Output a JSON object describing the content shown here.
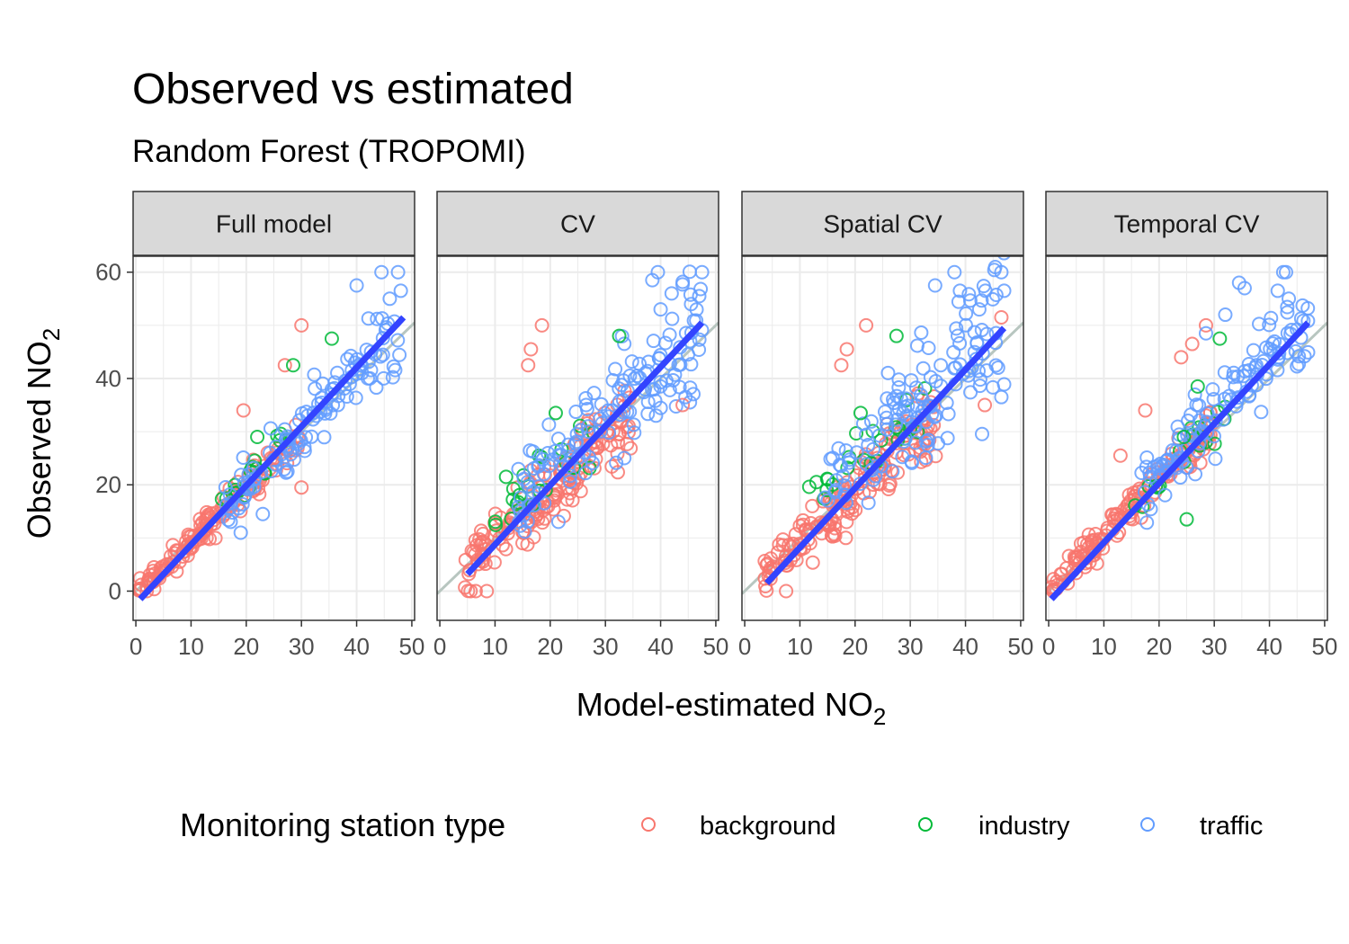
{
  "chart_data": {
    "type": "scatter",
    "title": "Observed vs estimated",
    "subtitle": "Random Forest (TROPOMI)",
    "xlabel_main": "Model-estimated NO",
    "xlabel_sub": "2",
    "ylabel_main": "Observed NO",
    "ylabel_sub": "2",
    "xlim": [
      -0.5,
      50.5
    ],
    "ylim": [
      -5.5,
      63
    ],
    "x_ticks": [
      0,
      10,
      20,
      30,
      40,
      50
    ],
    "x_tick_labels": [
      "0",
      "10",
      "20",
      "30",
      "40",
      "50"
    ],
    "y_ticks": [
      0,
      20,
      40,
      60
    ],
    "y_tick_labels": [
      "0",
      "20",
      "40",
      "60"
    ],
    "grid": true,
    "reference_line": {
      "slope": 1,
      "intercept": 0,
      "color": "#b8c6c0"
    },
    "legend": {
      "title": "Monitoring station type",
      "position": "bottom",
      "entries": [
        {
          "label": "background",
          "color": "#f8766d"
        },
        {
          "label": "industry",
          "color": "#00ba38"
        },
        {
          "label": "traffic",
          "color": "#619cff"
        }
      ]
    },
    "panels": [
      {
        "strip": "Full model",
        "fit_line": {
          "x": [
            0.8,
            48.5
          ],
          "y": [
            -1.5,
            51.5
          ],
          "color": "#3344ff"
        },
        "clusters": [
          {
            "series": "background",
            "x": [
              0.5,
              30
            ],
            "slope": 1.0,
            "intercept": -0.5,
            "spread": 2.2,
            "count": 150,
            "seed": 11
          },
          {
            "series": "industry",
            "x": [
              15,
              35
            ],
            "slope": 1.0,
            "intercept": 1.5,
            "spread": 2.5,
            "count": 18,
            "seed": 12
          },
          {
            "series": "traffic",
            "x": [
              16,
              48
            ],
            "slope": 1.02,
            "intercept": 0,
            "spread": 3.2,
            "count": 120,
            "seed": 13
          }
        ],
        "outliers": [
          {
            "series": "background",
            "points": [
              [
                30,
                19.5
              ],
              [
                24.5,
                25
              ],
              [
                19.5,
                34
              ],
              [
                27,
                42.5
              ],
              [
                30,
                50
              ]
            ]
          },
          {
            "series": "industry",
            "points": [
              [
                35.5,
                47.5
              ],
              [
                28.5,
                42.5
              ],
              [
                22,
                29
              ]
            ]
          },
          {
            "series": "traffic",
            "points": [
              [
                44.5,
                60
              ],
              [
                47.5,
                60
              ],
              [
                40,
                57.5
              ],
              [
                48,
                56.5
              ],
              [
                46,
                55
              ],
              [
                23,
                14.5
              ],
              [
                19,
                11
              ]
            ]
          }
        ]
      },
      {
        "strip": "CV",
        "fit_line": {
          "x": [
            5,
            47.5
          ],
          "y": [
            3.2,
            50.5
          ],
          "color": "#3344ff"
        },
        "clusters": [
          {
            "series": "background",
            "x": [
              4.5,
              35
            ],
            "slope": 0.95,
            "intercept": 0,
            "spread": 4.5,
            "count": 170,
            "seed": 21
          },
          {
            "series": "industry",
            "x": [
              10,
              33
            ],
            "slope": 1.0,
            "intercept": 4,
            "spread": 4.0,
            "count": 22,
            "seed": 22
          },
          {
            "series": "traffic",
            "x": [
              14,
              47.5
            ],
            "slope": 1.0,
            "intercept": 3,
            "spread": 6.0,
            "count": 140,
            "seed": 23
          }
        ],
        "outliers": [
          {
            "series": "background",
            "points": [
              [
                18.5,
                50
              ],
              [
                16.5,
                45.5
              ],
              [
                16,
                42.5
              ],
              [
                44,
                35
              ],
              [
                6.5,
                0
              ],
              [
                8.5,
                0
              ]
            ]
          },
          {
            "series": "industry",
            "points": [
              [
                32.5,
                48
              ],
              [
                21,
                33.5
              ],
              [
                12,
                21.5
              ]
            ]
          },
          {
            "series": "traffic",
            "points": [
              [
                39.5,
                60
              ],
              [
                47.5,
                60
              ],
              [
                38.5,
                58.5
              ],
              [
                42,
                56
              ],
              [
                47,
                55.5
              ],
              [
                44.5,
                36.5
              ],
              [
                40,
                53
              ]
            ]
          }
        ]
      },
      {
        "strip": "Spatial CV",
        "fit_line": {
          "x": [
            4,
            47
          ],
          "y": [
            1.5,
            49.5
          ],
          "color": "#3344ff"
        },
        "clusters": [
          {
            "series": "background",
            "x": [
              3.5,
              35
            ],
            "slope": 0.95,
            "intercept": 0,
            "spread": 4.5,
            "count": 170,
            "seed": 31
          },
          {
            "series": "industry",
            "x": [
              10,
              33
            ],
            "slope": 1.0,
            "intercept": 4,
            "spread": 4.0,
            "count": 22,
            "seed": 32
          },
          {
            "series": "traffic",
            "x": [
              14,
              47
            ],
            "slope": 1.0,
            "intercept": 3,
            "spread": 6.0,
            "count": 140,
            "seed": 33
          }
        ],
        "outliers": [
          {
            "series": "background",
            "points": [
              [
                22,
                50
              ],
              [
                18.5,
                45.5
              ],
              [
                17.5,
                42.5
              ],
              [
                43.5,
                35
              ],
              [
                46.5,
                51.5
              ],
              [
                7.5,
                0
              ]
            ]
          },
          {
            "series": "industry",
            "points": [
              [
                27.5,
                48
              ],
              [
                21,
                33.5
              ],
              [
                13,
                20.5
              ]
            ]
          },
          {
            "series": "traffic",
            "points": [
              [
                38,
                60
              ],
              [
                46.5,
                60
              ],
              [
                34.5,
                57.5
              ],
              [
                39,
                56.5
              ],
              [
                47,
                56.5
              ],
              [
                46.5,
                36.5
              ],
              [
                42.5,
                53
              ]
            ]
          }
        ]
      },
      {
        "strip": "Temporal CV",
        "fit_line": {
          "x": [
            0.5,
            47
          ],
          "y": [
            -1.5,
            50.5
          ],
          "color": "#3344ff"
        },
        "clusters": [
          {
            "series": "background",
            "x": [
              0.5,
              30
            ],
            "slope": 1.05,
            "intercept": 0,
            "spread": 2.6,
            "count": 150,
            "seed": 41
          },
          {
            "series": "industry",
            "x": [
              15,
              33
            ],
            "slope": 1.05,
            "intercept": 1,
            "spread": 3.5,
            "count": 18,
            "seed": 42
          },
          {
            "series": "traffic",
            "x": [
              16,
              47
            ],
            "slope": 1.05,
            "intercept": 1,
            "spread": 4.0,
            "count": 120,
            "seed": 43
          }
        ],
        "outliers": [
          {
            "series": "background",
            "points": [
              [
                28.5,
                50
              ],
              [
                26,
                46.5
              ],
              [
                24,
                44
              ],
              [
                17.5,
                34
              ],
              [
                13,
                25.5
              ]
            ]
          },
          {
            "series": "industry",
            "points": [
              [
                31,
                47.5
              ],
              [
                27,
                38.5
              ],
              [
                24.5,
                29
              ],
              [
                25,
                13.5
              ]
            ]
          },
          {
            "series": "traffic",
            "points": [
              [
                42.5,
                60
              ],
              [
                43,
                60
              ],
              [
                34.5,
                58
              ],
              [
                35.5,
                57
              ],
              [
                41.5,
                56.5
              ],
              [
                43.5,
                55
              ],
              [
                32,
                52
              ],
              [
                28.5,
                48.5
              ]
            ]
          }
        ]
      }
    ]
  }
}
